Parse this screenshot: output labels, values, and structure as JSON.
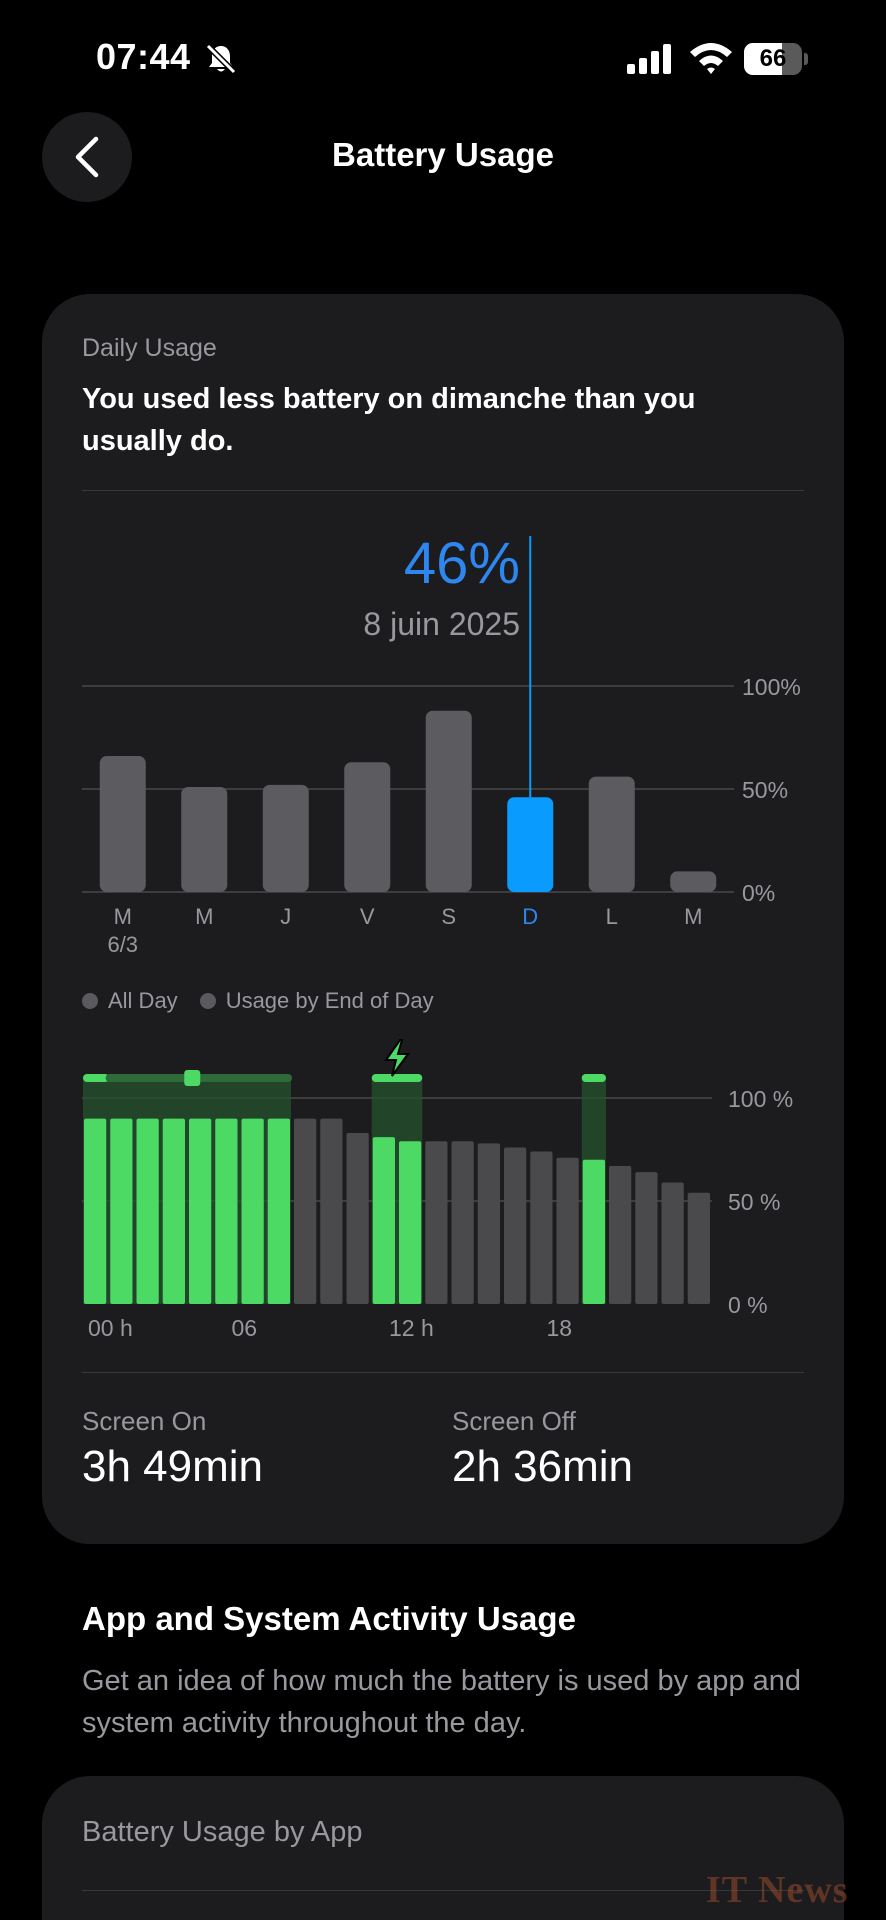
{
  "status_bar": {
    "time": "07:44",
    "battery_level": "66",
    "battery_fraction": 0.66
  },
  "nav": {
    "title": "Battery Usage",
    "back_icon": "chevron-left-icon"
  },
  "daily": {
    "section_label": "Daily Usage",
    "headline": "You used less battery on dimanche than you usually do.",
    "selected_percent": "46%",
    "selected_date": "8 juin 2025"
  },
  "chart_data": [
    {
      "type": "bar",
      "categories": [
        "M",
        "M",
        "J",
        "V",
        "S",
        "D",
        "L",
        "M"
      ],
      "sublabels": [
        "6/3",
        "",
        "",
        "",
        "",
        "",
        "",
        ""
      ],
      "values": [
        66,
        51,
        52,
        63,
        88,
        46,
        56,
        10
      ],
      "selected_index": 5,
      "yticks": [
        "100%",
        "50%",
        "0%"
      ],
      "ylim": [
        0,
        100
      ],
      "colors": {
        "bar": "#5c5c60",
        "selected": "#0a9bff",
        "selected_label": "#2e86f0"
      }
    },
    {
      "type": "bar",
      "legend": [
        "All Day",
        "Usage by End of Day"
      ],
      "hours": [
        "00h",
        "01h",
        "02h",
        "03h",
        "04h",
        "05h",
        "06h",
        "07h",
        "08h",
        "09h",
        "10h",
        "11h",
        "12h",
        "13h",
        "14h",
        "15h",
        "16h",
        "17h",
        "18h",
        "19h",
        "20h",
        "21h",
        "22h",
        "23h"
      ],
      "values": [
        90,
        90,
        90,
        90,
        90,
        90,
        90,
        90,
        90,
        90,
        83,
        81,
        79,
        79,
        79,
        78,
        76,
        74,
        71,
        70,
        67,
        64,
        59,
        54
      ],
      "charging": [
        true,
        true,
        true,
        true,
        true,
        true,
        true,
        true,
        false,
        false,
        false,
        true,
        true,
        false,
        false,
        false,
        false,
        false,
        false,
        true,
        false,
        false,
        false,
        false
      ],
      "charging_periods": [
        [
          0,
          8
        ],
        [
          11,
          13
        ],
        [
          19,
          20
        ]
      ],
      "xticks": [
        "00 h",
        "06",
        "12 h",
        "18"
      ],
      "yticks": [
        "100 %",
        "50 %",
        "0 %"
      ],
      "ylim": [
        0,
        100
      ],
      "colors": {
        "charging": "#4cd964",
        "normal": "#4a4a4d",
        "band": "#24522c"
      }
    }
  ],
  "stats": {
    "screen_on_label": "Screen On",
    "screen_on_value": "3h 49min",
    "screen_off_label": "Screen Off",
    "screen_off_value": "2h 36min"
  },
  "activity": {
    "title": "App and System Activity Usage",
    "description": "Get an idea of how much the battery is used by app and system activity throughout the day."
  },
  "by_app": {
    "label": "Battery Usage by App"
  },
  "watermark": "IT News"
}
